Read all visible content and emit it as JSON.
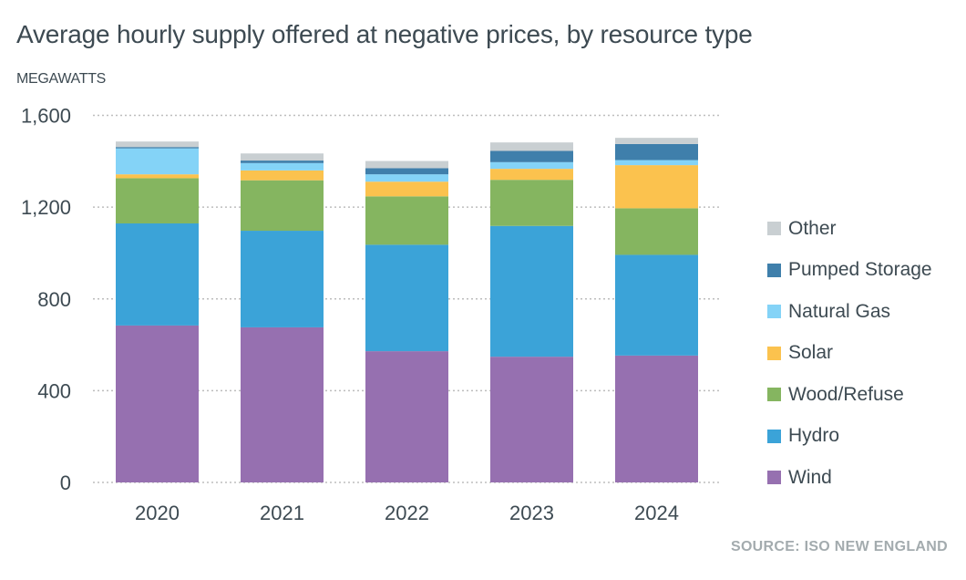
{
  "title": "Average hourly supply offered at negative prices, by resource type",
  "unit_label": "MEGAWATTS",
  "source": "SOURCE: ISO NEW ENGLAND",
  "chart_data": {
    "type": "bar",
    "stacked": true,
    "title": "Average hourly supply offered at negative prices, by resource type",
    "xlabel": "",
    "ylabel": "MEGAWATTS",
    "categories": [
      "2020",
      "2021",
      "2022",
      "2023",
      "2024"
    ],
    "ylim": [
      0,
      1600
    ],
    "yticks": [
      0,
      400,
      800,
      1200,
      1600
    ],
    "ytick_labels": [
      "0",
      "400",
      "800",
      "1,200",
      "1,600"
    ],
    "grid": true,
    "legend_position": "right",
    "series": [
      {
        "name": "Wind",
        "color": "#9670b0",
        "values": [
          684,
          676,
          572,
          548,
          553
        ]
      },
      {
        "name": "Hydro",
        "color": "#3ba3d8",
        "values": [
          445,
          421,
          464,
          570,
          439
        ]
      },
      {
        "name": "Wood/Refuse",
        "color": "#85b560",
        "values": [
          197,
          220,
          211,
          201,
          203
        ]
      },
      {
        "name": "Solar",
        "color": "#fbc24e",
        "values": [
          17,
          43,
          64,
          48,
          188
        ]
      },
      {
        "name": "Natural Gas",
        "color": "#84d3f7",
        "values": [
          113,
          32,
          32,
          29,
          22
        ]
      },
      {
        "name": "Pumped Storage",
        "color": "#3f7fab",
        "values": [
          6,
          11,
          27,
          49,
          70
        ]
      },
      {
        "name": "Other",
        "color": "#c9cfd2",
        "values": [
          24,
          31,
          31,
          37,
          27
        ]
      }
    ]
  },
  "legend": [
    {
      "label": "Other",
      "color": "#c9cfd2"
    },
    {
      "label": "Pumped Storage",
      "color": "#3f7fab"
    },
    {
      "label": "Natural Gas",
      "color": "#84d3f7"
    },
    {
      "label": "Solar",
      "color": "#fbc24e"
    },
    {
      "label": "Wood/Refuse",
      "color": "#85b560"
    },
    {
      "label": "Hydro",
      "color": "#3ba3d8"
    },
    {
      "label": "Wind",
      "color": "#9670b0"
    }
  ]
}
